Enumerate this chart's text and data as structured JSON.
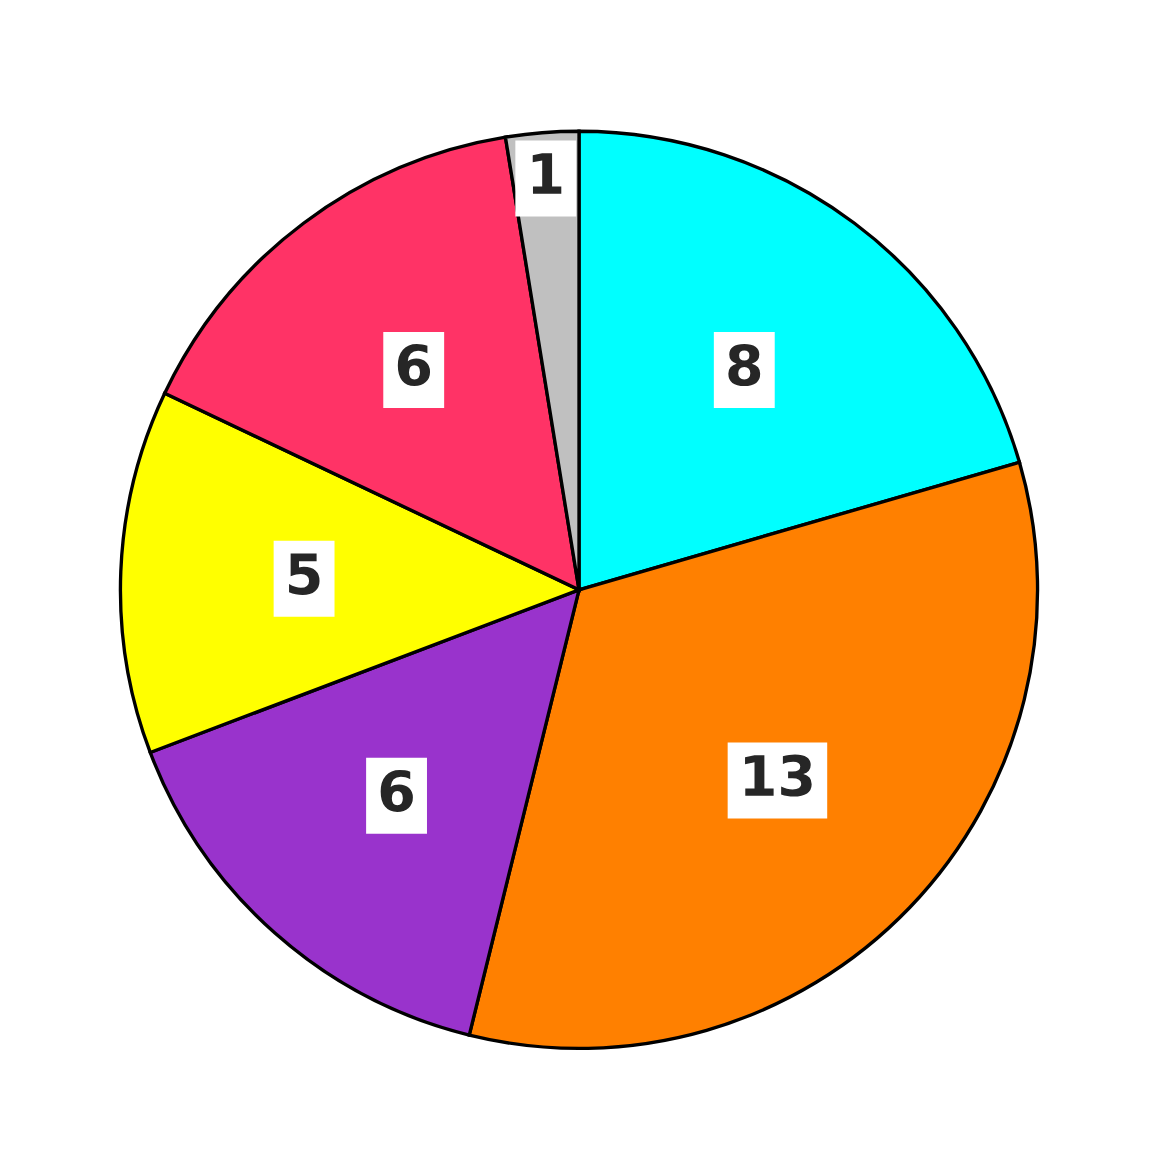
{
  "chart_data": {
    "type": "pie",
    "categories": [
      null,
      null,
      null,
      null,
      null,
      null
    ],
    "values": [
      8,
      13,
      6,
      5,
      6,
      1
    ],
    "colors": [
      "#00ffff",
      "#ff8000",
      "#9933cc",
      "#ffff00",
      "#ff3366",
      "#c0c0c0"
    ],
    "data_labels": true
  }
}
